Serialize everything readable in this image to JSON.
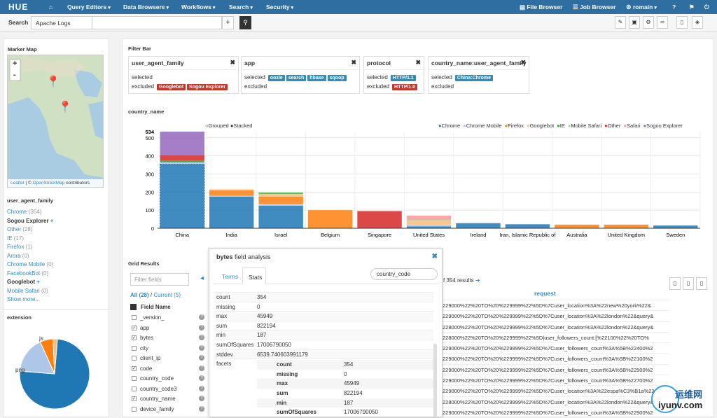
{
  "nav": {
    "logo": "HUE",
    "query_editors": "Query Editors",
    "data_browsers": "Data Browsers",
    "workflows": "Workflows",
    "search": "Search",
    "security": "Security",
    "file_browser": "File Browser",
    "job_browser": "Job Browser",
    "user": "romain"
  },
  "searchbar": {
    "label": "Search",
    "collection": "Apache Logs"
  },
  "marker_map": {
    "title": "Marker Map",
    "attribution_leaflet": "Leaflet",
    "attribution_osm": "OpenStreetMap",
    "attribution_rest": "contributors",
    "attribution_sep": "| ©",
    "zoom_in": "+",
    "zoom_out": "-"
  },
  "uaf": {
    "title": "user_agent_family",
    "items": [
      {
        "name": "Chrome",
        "count": "(354)"
      },
      {
        "name": "Sogou Explorer",
        "count": ""
      },
      {
        "name": "Other",
        "count": "(28)"
      },
      {
        "name": "IE",
        "count": "(17)"
      },
      {
        "name": "Firefox",
        "count": "(1)"
      },
      {
        "name": "Arora",
        "count": "(0)"
      },
      {
        "name": "Chrome Mobile",
        "count": "(0)"
      },
      {
        "name": "FacebookBot",
        "count": "(0)"
      },
      {
        "name": "Googlebot",
        "count": ""
      },
      {
        "name": "Mobile Safari",
        "count": "(0)"
      }
    ],
    "show_more": "Show more..."
  },
  "extension": {
    "title": "extension",
    "labels": [
      "js",
      "png"
    ],
    "slices": [
      {
        "label": "png",
        "value": 75,
        "color": "#1f77b4"
      },
      {
        "label": "other",
        "value": 17,
        "color": "#aec7e8"
      },
      {
        "label": "js",
        "value": 6,
        "color": "#ff7f0e"
      },
      {
        "label": "x",
        "value": 2,
        "color": "#ffbb78"
      }
    ]
  },
  "filterbar": {
    "title": "Filter Bar",
    "selected": "selected",
    "excluded": "excluded",
    "cards": [
      {
        "title": "user_agent_family",
        "selected": [],
        "excluded": [
          "Googlebot",
          "Sogou Explorer"
        ]
      },
      {
        "title": "app",
        "selected": [
          "oozie",
          "search",
          "hbase",
          "sqoop"
        ],
        "excluded": []
      },
      {
        "title": "protocol",
        "selected": [
          "HTTP/1.1"
        ],
        "excluded": [
          "HTTP/1.0"
        ]
      },
      {
        "title": "country_name:user_agent_family",
        "selected": [
          "China:Chrome"
        ],
        "excluded": []
      }
    ]
  },
  "chart_data": {
    "type": "bar",
    "title": "country_name",
    "stacked": true,
    "mode_labels": [
      "Grouped",
      "Stacked"
    ],
    "categories": [
      "China",
      "India",
      "Israel",
      "Belgium",
      "Singapore",
      "United States",
      "Ireland",
      "Iran, Islamic Republic of",
      "Australia",
      "United Kingdom",
      "Sweden"
    ],
    "series": [
      {
        "name": "Chrome",
        "color": "#1f77b4",
        "values": [
          354,
          175,
          125,
          0,
          0,
          10,
          28,
          22,
          2,
          2,
          15
        ]
      },
      {
        "name": "Chrome Mobile",
        "color": "#aec7e8",
        "values": [
          10,
          5,
          10,
          0,
          0,
          10,
          0,
          0,
          0,
          0,
          0
        ]
      },
      {
        "name": "Firefox",
        "color": "#ff7f0e",
        "values": [
          0,
          30,
          40,
          100,
          0,
          0,
          0,
          0,
          18,
          18,
          0
        ]
      },
      {
        "name": "Googlebot",
        "color": "#ffbb78",
        "values": [
          0,
          5,
          15,
          0,
          0,
          20,
          0,
          0,
          0,
          0,
          0
        ]
      },
      {
        "name": "IE",
        "color": "#2ca02c",
        "values": [
          10,
          0,
          5,
          0,
          0,
          0,
          0,
          0,
          0,
          0,
          0
        ]
      },
      {
        "name": "Mobile Safari",
        "color": "#98df8a",
        "values": [
          0,
          0,
          5,
          0,
          0,
          5,
          0,
          0,
          0,
          0,
          0
        ]
      },
      {
        "name": "Other",
        "color": "#d62728",
        "values": [
          30,
          0,
          0,
          0,
          95,
          0,
          0,
          0,
          0,
          0,
          0
        ]
      },
      {
        "name": "Safari",
        "color": "#ff9896",
        "values": [
          0,
          0,
          0,
          0,
          0,
          25,
          0,
          0,
          0,
          0,
          0
        ]
      },
      {
        "name": "Sogou Explorer",
        "color": "#9467bd",
        "values": [
          130,
          0,
          0,
          0,
          0,
          0,
          0,
          0,
          0,
          0,
          0
        ]
      }
    ],
    "yticks": [
      0,
      100,
      200,
      300,
      400,
      500
    ],
    "ymax_label": "534",
    "ylim": [
      0,
      534
    ]
  },
  "grid": {
    "title": "Grid Results",
    "filter_placeholder": "Filter fields",
    "all": "All (28)",
    "sep": "/",
    "current": "Current (5)",
    "field_name_header": "Field Name",
    "results": "f 354 results",
    "request_header": "request",
    "fields": [
      {
        "name": "_version_",
        "checked": false
      },
      {
        "name": "app",
        "checked": true
      },
      {
        "name": "bytes",
        "checked": true
      },
      {
        "name": "city",
        "checked": false
      },
      {
        "name": "client_ip",
        "checked": false
      },
      {
        "name": "code",
        "checked": true
      },
      {
        "name": "country_code",
        "checked": false
      },
      {
        "name": "country_code3",
        "checked": false
      },
      {
        "name": "country_name",
        "checked": true
      },
      {
        "name": "device_family",
        "checked": false
      }
    ],
    "rows": [
      "229000%22%20TO%20%229999%22%5D%7Cuser_location%3A%22new%20york%22&",
      "229000%22%20TO%20%229999%22%5D%7Cuser_location%3A%22london%22&query&",
      "228000%22%20TO%20%229999%22%5D%7Cuser_location%3A%22london%22&query&",
      "228000%22%20TO%20%229999%22%5D|user_followers_count:[%22100%22%20TO%",
      "229000%22%20TO%20%229999%22%5D%7Cuser_followers_count%3A%5B%22400%2",
      "229000%22%20TO%20%229999%22%5D%7Cuser_followers_count%3A%5B%22100%2",
      "229000%22%20TO%20%229999%22%5D%7Cuser_followers_count%3A%5B%22500%2",
      "229000%22%20TO%20%229999%22%5D%7Cuser_followers_count%3A%5B%22700%2",
      "229000%22%20TO%20%229999%22%5D%7Cuser_location%3A%22espa%C3%B1a%22",
      "228000%22%20TO%20%229999%22%5D%7Cuser_location%3A%22london%22&query&",
      "229000%22%20TO%20%229999%22%5D%7Cuser_followers_count%3A%5B%22900%2"
    ]
  },
  "popup": {
    "title_field": "bytes",
    "title_rest": "field analysis",
    "tab_terms": "Terms",
    "tab_stats": "Stats",
    "facet_input": "country_code",
    "stats": [
      {
        "k": "count",
        "v": "354"
      },
      {
        "k": "missing",
        "v": "0"
      },
      {
        "k": "max",
        "v": "45949"
      },
      {
        "k": "sum",
        "v": "822194"
      },
      {
        "k": "min",
        "v": "187"
      },
      {
        "k": "sumOfSquares",
        "v": "17006790050"
      },
      {
        "k": "stddev",
        "v": "6539.740603991179"
      }
    ],
    "facets_label": "facets",
    "facet_key": "CN",
    "facet_stats": [
      {
        "k": "count",
        "v": "354"
      },
      {
        "k": "missing",
        "v": "0"
      },
      {
        "k": "max",
        "v": "45949"
      },
      {
        "k": "sum",
        "v": "822194"
      },
      {
        "k": "min",
        "v": "187"
      },
      {
        "k": "sumOfSquares",
        "v": "17006790050"
      }
    ]
  },
  "watermark": {
    "cn": "运维网",
    "en": "iyunv.com"
  }
}
